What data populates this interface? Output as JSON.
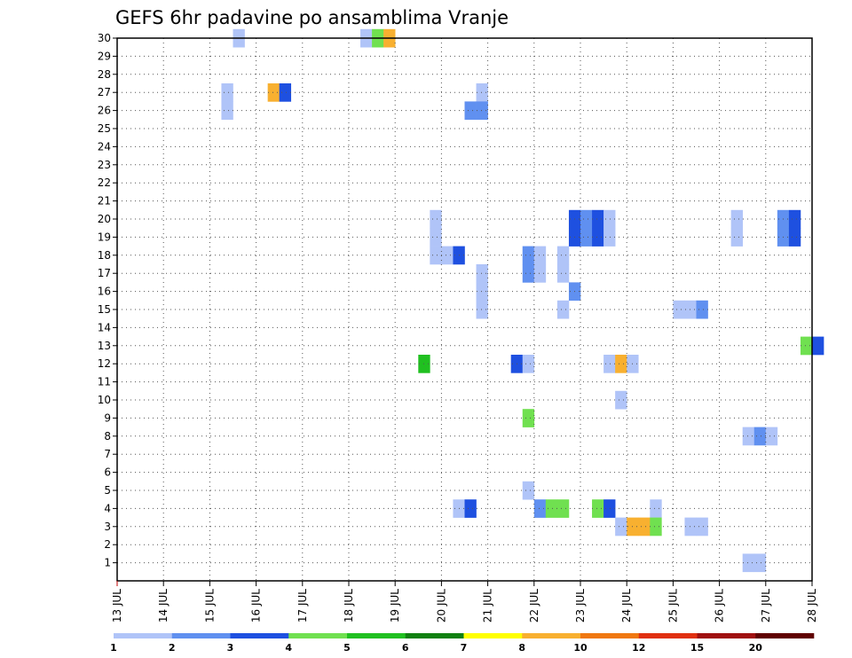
{
  "chart_data": {
    "type": "heatmap",
    "title": "GEFS 6hr padavine po ansamblima Vranje",
    "xlabel": "",
    "ylabel": "",
    "x_ticks": [
      "13 JUL",
      "14 JUL",
      "15 JUL",
      "16 JUL",
      "17 JUL",
      "18 JUL",
      "19 JUL",
      "20 JUL",
      "21 JUL",
      "22 JUL",
      "23 JUL",
      "24 JUL",
      "25 JUL",
      "26 JUL",
      "27 JUL",
      "28 JUL"
    ],
    "x_range_days": [
      13,
      28
    ],
    "y_ticks": [
      "1",
      "2",
      "3",
      "4",
      "5",
      "6",
      "7",
      "8",
      "9",
      "10",
      "11",
      "12",
      "13",
      "14",
      "15",
      "16",
      "17",
      "18",
      "19",
      "20",
      "21",
      "22",
      "23",
      "24",
      "25",
      "26",
      "27",
      "28",
      "29",
      "30"
    ],
    "y_range": [
      0,
      30
    ],
    "grid": true,
    "legend": {
      "placement": "bottom",
      "labels": [
        "1",
        "2",
        "3",
        "4",
        "5",
        "6",
        "7",
        "8",
        "10",
        "12",
        "15",
        "20"
      ],
      "colors": [
        "#b0c4f8",
        "#6090f0",
        "#1e50e0",
        "#70e050",
        "#20c020",
        "#108010",
        "#ffff00",
        "#f8b030",
        "#f07810",
        "#e03010",
        "#a01010",
        "#600000"
      ]
    },
    "cells": [
      {
        "day": 15.5,
        "member": 30,
        "color": "#b0c4f8"
      },
      {
        "day": 18.25,
        "member": 30,
        "color": "#b0c4f8"
      },
      {
        "day": 18.5,
        "member": 30,
        "color": "#70e050"
      },
      {
        "day": 18.75,
        "member": 30,
        "color": "#f8b030"
      },
      {
        "day": 15.25,
        "member": 27,
        "color": "#b0c4f8"
      },
      {
        "day": 15.25,
        "member": 26,
        "color": "#b0c4f8"
      },
      {
        "day": 16.25,
        "member": 27,
        "color": "#f8b030"
      },
      {
        "day": 16.5,
        "member": 27,
        "color": "#1e50e0"
      },
      {
        "day": 20.75,
        "member": 27,
        "color": "#b0c4f8"
      },
      {
        "day": 20.5,
        "member": 26,
        "color": "#6090f0"
      },
      {
        "day": 20.75,
        "member": 26,
        "color": "#6090f0"
      },
      {
        "day": 19.75,
        "member": 20,
        "color": "#b0c4f8"
      },
      {
        "day": 19.75,
        "member": 19,
        "color": "#b0c4f8"
      },
      {
        "day": 19.75,
        "member": 18,
        "color": "#b0c4f8"
      },
      {
        "day": 20.0,
        "member": 18,
        "color": "#b0c4f8"
      },
      {
        "day": 20.25,
        "member": 18,
        "color": "#1e50e0"
      },
      {
        "day": 22.75,
        "member": 20,
        "color": "#1e50e0"
      },
      {
        "day": 22.75,
        "member": 19,
        "color": "#1e50e0"
      },
      {
        "day": 23.0,
        "member": 20,
        "color": "#6090f0"
      },
      {
        "day": 23.0,
        "member": 19,
        "color": "#6090f0"
      },
      {
        "day": 23.25,
        "member": 20,
        "color": "#1e50e0"
      },
      {
        "day": 23.25,
        "member": 19,
        "color": "#1e50e0"
      },
      {
        "day": 23.5,
        "member": 20,
        "color": "#b0c4f8"
      },
      {
        "day": 23.5,
        "member": 19,
        "color": "#b0c4f8"
      },
      {
        "day": 26.25,
        "member": 20,
        "color": "#b0c4f8"
      },
      {
        "day": 26.25,
        "member": 19,
        "color": "#b0c4f8"
      },
      {
        "day": 27.25,
        "member": 20,
        "color": "#6090f0"
      },
      {
        "day": 27.25,
        "member": 19,
        "color": "#6090f0"
      },
      {
        "day": 27.5,
        "member": 20,
        "color": "#1e50e0"
      },
      {
        "day": 27.5,
        "member": 19,
        "color": "#1e50e0"
      },
      {
        "day": 20.75,
        "member": 17,
        "color": "#b0c4f8"
      },
      {
        "day": 20.75,
        "member": 16,
        "color": "#b0c4f8"
      },
      {
        "day": 20.75,
        "member": 15,
        "color": "#b0c4f8"
      },
      {
        "day": 21.75,
        "member": 18,
        "color": "#6090f0"
      },
      {
        "day": 21.75,
        "member": 17,
        "color": "#6090f0"
      },
      {
        "day": 22.0,
        "member": 18,
        "color": "#b0c4f8"
      },
      {
        "day": 22.0,
        "member": 17,
        "color": "#b0c4f8"
      },
      {
        "day": 22.5,
        "member": 18,
        "color": "#b0c4f8"
      },
      {
        "day": 22.5,
        "member": 17,
        "color": "#b0c4f8"
      },
      {
        "day": 22.75,
        "member": 16,
        "color": "#6090f0"
      },
      {
        "day": 22.5,
        "member": 15,
        "color": "#b0c4f8"
      },
      {
        "day": 25.0,
        "member": 15,
        "color": "#b0c4f8"
      },
      {
        "day": 25.25,
        "member": 15,
        "color": "#b0c4f8"
      },
      {
        "day": 25.5,
        "member": 15,
        "color": "#6090f0"
      },
      {
        "day": 27.75,
        "member": 13,
        "color": "#70e050"
      },
      {
        "day": 28.0,
        "member": 13,
        "color": "#1e50e0"
      },
      {
        "day": 19.5,
        "member": 12,
        "color": "#20c020"
      },
      {
        "day": 21.5,
        "member": 12,
        "color": "#1e50e0"
      },
      {
        "day": 21.75,
        "member": 12,
        "color": "#b0c4f8"
      },
      {
        "day": 23.5,
        "member": 12,
        "color": "#b0c4f8"
      },
      {
        "day": 23.75,
        "member": 12,
        "color": "#f8b030"
      },
      {
        "day": 24.0,
        "member": 12,
        "color": "#b0c4f8"
      },
      {
        "day": 23.75,
        "member": 10,
        "color": "#b0c4f8"
      },
      {
        "day": 21.75,
        "member": 9,
        "color": "#70e050"
      },
      {
        "day": 26.5,
        "member": 8,
        "color": "#b0c4f8"
      },
      {
        "day": 26.75,
        "member": 8,
        "color": "#6090f0"
      },
      {
        "day": 27.0,
        "member": 8,
        "color": "#b0c4f8"
      },
      {
        "day": 21.75,
        "member": 5,
        "color": "#b0c4f8"
      },
      {
        "day": 20.25,
        "member": 4,
        "color": "#b0c4f8"
      },
      {
        "day": 20.5,
        "member": 4,
        "color": "#1e50e0"
      },
      {
        "day": 22.0,
        "member": 4,
        "color": "#6090f0"
      },
      {
        "day": 22.25,
        "member": 4,
        "color": "#70e050"
      },
      {
        "day": 22.5,
        "member": 4,
        "color": "#70e050"
      },
      {
        "day": 23.25,
        "member": 4,
        "color": "#70e050"
      },
      {
        "day": 23.5,
        "member": 4,
        "color": "#1e50e0"
      },
      {
        "day": 24.5,
        "member": 4,
        "color": "#b0c4f8"
      },
      {
        "day": 23.75,
        "member": 3,
        "color": "#b0c4f8"
      },
      {
        "day": 24.0,
        "member": 3,
        "color": "#f8b030"
      },
      {
        "day": 24.25,
        "member": 3,
        "color": "#f8b030"
      },
      {
        "day": 24.5,
        "member": 3,
        "color": "#70e050"
      },
      {
        "day": 25.25,
        "member": 3,
        "color": "#b0c4f8"
      },
      {
        "day": 25.5,
        "member": 3,
        "color": "#b0c4f8"
      },
      {
        "day": 26.5,
        "member": 1,
        "color": "#b0c4f8"
      },
      {
        "day": 26.75,
        "member": 1,
        "color": "#b0c4f8"
      }
    ]
  }
}
